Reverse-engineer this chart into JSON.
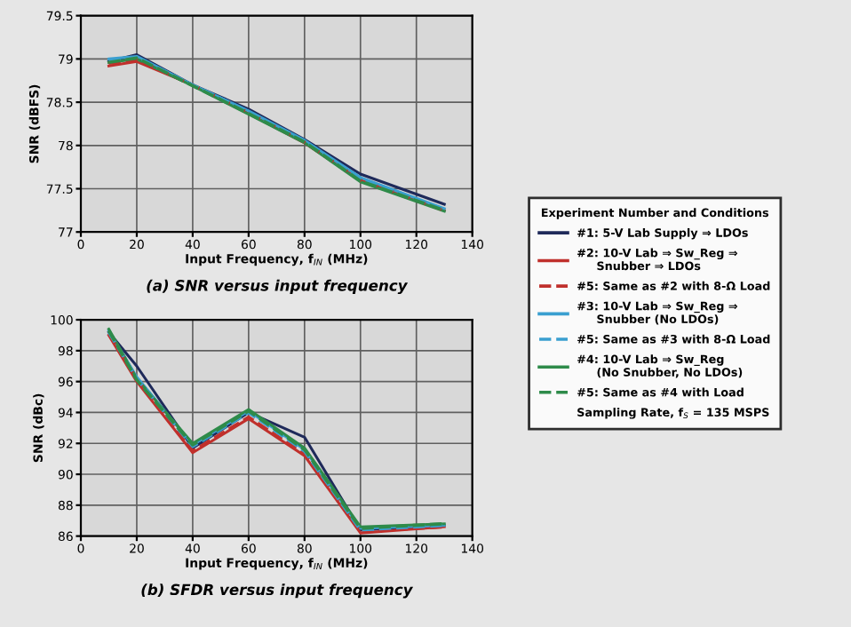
{
  "chart_data": [
    {
      "type": "line",
      "title": "(a) SNR versus input frequency",
      "xlabel": "Input Frequency, f$_{IN}$ (MHz)",
      "ylabel": "SNR (dBFS)",
      "legend_title": "Experiment Number and Conditions",
      "annotations": [
        "Sampling Rate, f$_{S}$ = 135 MSPS"
      ],
      "x": [
        10,
        20,
        40,
        60,
        80,
        100,
        130
      ],
      "xlim": [
        0,
        140
      ],
      "xticks": [
        0,
        20,
        40,
        60,
        80,
        100,
        120,
        140
      ],
      "ylim": [
        77,
        79.5
      ],
      "yticks": [
        77,
        77.5,
        78,
        78.5,
        79,
        79.5
      ],
      "grid": true,
      "legend": "right",
      "series": [
        {
          "name": "#1: 5-V Lab Supply ⇒ LDOs",
          "color": "#1f2a5a",
          "line_style": "solid",
          "values": [
            78.97,
            79.05,
            78.7,
            78.42,
            78.07,
            77.67,
            77.32
          ]
        },
        {
          "name": "#2: 10-V Lab ⇒ Sw_Reg ⇒\n     Snubber ⇒ LDOs",
          "color": "#c0302c",
          "line_style": "solid",
          "values": [
            78.92,
            78.97,
            78.7,
            78.37,
            78.03,
            77.6,
            77.25
          ]
        },
        {
          "name": "#5: Same as #2 with 8-Ω Load",
          "color": "#c0302c",
          "line_style": "dashed",
          "values": [
            78.95,
            78.99,
            78.7,
            78.38,
            78.04,
            77.6,
            77.25
          ]
        },
        {
          "name": "#3: 10-V Lab ⇒ Sw_Reg ⇒\n     Snubber (No LDOs)",
          "color": "#3a9fd0",
          "line_style": "solid",
          "values": [
            79.0,
            79.03,
            78.7,
            78.4,
            78.06,
            77.63,
            77.27
          ]
        },
        {
          "name": "#5: Same as #3 with 8-Ω Load",
          "color": "#3a9fd0",
          "line_style": "dashed",
          "values": [
            78.98,
            79.02,
            78.7,
            78.39,
            78.05,
            77.62,
            77.26
          ]
        },
        {
          "name": "#4: 10-V Lab ⇒ Sw_Reg\n     (No Snubber, No LDOs)",
          "color": "#2e8b4a",
          "line_style": "solid",
          "values": [
            78.96,
            79.0,
            78.69,
            78.36,
            78.03,
            77.58,
            77.24
          ]
        },
        {
          "name": "#5: Same as #4 with Load",
          "color": "#2e8b4a",
          "line_style": "dashed",
          "values": [
            78.96,
            79.01,
            78.69,
            78.37,
            78.04,
            77.59,
            77.25
          ]
        }
      ]
    },
    {
      "type": "line",
      "title": "(b) SFDR versus input frequency",
      "xlabel": "Input Frequency, f$_{IN}$ (MHz)",
      "ylabel": "SNR (dBc)",
      "x": [
        10,
        20,
        40,
        60,
        80,
        100,
        130
      ],
      "xlim": [
        0,
        140
      ],
      "xticks": [
        0,
        20,
        40,
        60,
        80,
        100,
        120,
        140
      ],
      "ylim": [
        86,
        100
      ],
      "yticks": [
        86,
        88,
        90,
        92,
        94,
        96,
        98,
        100
      ],
      "grid": true,
      "series": [
        {
          "color": "#1f2a5a",
          "line_style": "solid",
          "values": [
            99.2,
            97.0,
            91.7,
            94.0,
            92.4,
            86.4,
            86.7
          ]
        },
        {
          "color": "#c0302c",
          "line_style": "solid",
          "values": [
            99.0,
            96.0,
            91.4,
            93.6,
            91.2,
            86.2,
            86.6
          ]
        },
        {
          "color": "#c0302c",
          "line_style": "dashed",
          "values": [
            99.1,
            96.1,
            91.5,
            93.7,
            91.3,
            86.3,
            86.6
          ]
        },
        {
          "color": "#3a9fd0",
          "line_style": "solid",
          "values": [
            99.3,
            96.3,
            91.9,
            94.1,
            91.6,
            86.5,
            86.7
          ]
        },
        {
          "color": "#3a9fd0",
          "line_style": "dashed",
          "values": [
            99.2,
            96.2,
            91.8,
            94.0,
            91.5,
            86.4,
            86.7
          ]
        },
        {
          "color": "#2e8b4a",
          "line_style": "solid",
          "values": [
            99.4,
            96.2,
            92.0,
            94.2,
            91.7,
            86.6,
            86.8
          ]
        },
        {
          "color": "#2e8b4a",
          "line_style": "dashed",
          "values": [
            99.3,
            96.1,
            91.9,
            94.1,
            91.6,
            86.5,
            86.8
          ]
        }
      ]
    }
  ]
}
